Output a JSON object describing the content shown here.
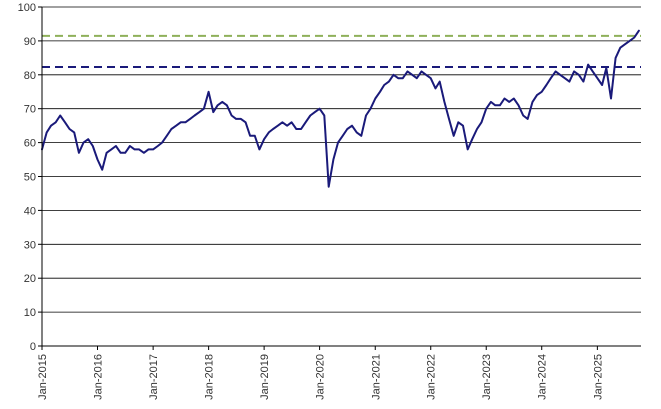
{
  "chart_data": {
    "type": "line",
    "title": "",
    "xlabel": "",
    "ylabel": "",
    "xlim": [
      "2015-01-01",
      "2025-10-15"
    ],
    "ylim": [
      0,
      100
    ],
    "y_ticks": [
      0,
      10,
      20,
      30,
      40,
      50,
      60,
      70,
      80,
      90,
      100
    ],
    "x_ticks": [
      "Jan-2015",
      "Jan-2016",
      "Jan-2017",
      "Jan-2018",
      "Jan-2019",
      "Jan-2020",
      "Jan-2021",
      "Jan-2022",
      "Jan-2023",
      "Jan-2024",
      "Jan-2025"
    ],
    "grid": "horizontal",
    "legend": "none",
    "series": [
      {
        "color": "#1a1a7a",
        "x": [
          "2015-01-01",
          "2015-02-01",
          "2015-03-01",
          "2015-04-01",
          "2015-05-01",
          "2015-06-01",
          "2015-07-01",
          "2015-08-01",
          "2015-09-01",
          "2015-10-01",
          "2015-11-01",
          "2015-12-01",
          "2016-01-01",
          "2016-02-01",
          "2016-03-01",
          "2016-04-01",
          "2016-05-01",
          "2016-06-01",
          "2016-07-01",
          "2016-08-01",
          "2016-09-01",
          "2016-10-01",
          "2016-11-01",
          "2016-12-01",
          "2017-01-01",
          "2017-02-01",
          "2017-03-01",
          "2017-04-01",
          "2017-05-01",
          "2017-06-01",
          "2017-07-01",
          "2017-08-01",
          "2017-09-01",
          "2017-10-01",
          "2017-11-01",
          "2017-12-01",
          "2018-01-01",
          "2018-02-01",
          "2018-03-01",
          "2018-04-01",
          "2018-05-01",
          "2018-06-01",
          "2018-07-01",
          "2018-08-01",
          "2018-09-01",
          "2018-10-01",
          "2018-11-01",
          "2018-12-01",
          "2019-01-01",
          "2019-02-01",
          "2019-03-01",
          "2019-04-01",
          "2019-05-01",
          "2019-06-01",
          "2019-07-01",
          "2019-08-01",
          "2019-09-01",
          "2019-10-01",
          "2019-11-01",
          "2019-12-01",
          "2020-01-01",
          "2020-02-01",
          "2020-03-01",
          "2020-04-01",
          "2020-05-01",
          "2020-06-01",
          "2020-07-01",
          "2020-08-01",
          "2020-09-01",
          "2020-10-01",
          "2020-11-01",
          "2020-12-01",
          "2021-01-01",
          "2021-02-01",
          "2021-03-01",
          "2021-04-01",
          "2021-05-01",
          "2021-06-01",
          "2021-07-01",
          "2021-08-01",
          "2021-09-01",
          "2021-10-01",
          "2021-11-01",
          "2021-12-01",
          "2022-01-01",
          "2022-02-01",
          "2022-03-01",
          "2022-04-01",
          "2022-05-01",
          "2022-06-01",
          "2022-07-01",
          "2022-08-01",
          "2022-09-01",
          "2022-10-01",
          "2022-11-01",
          "2022-12-01",
          "2023-01-01",
          "2023-02-01",
          "2023-03-01",
          "2023-04-01",
          "2023-05-01",
          "2023-06-01",
          "2023-07-01",
          "2023-08-01",
          "2023-09-01",
          "2023-10-01",
          "2023-11-01",
          "2023-12-01",
          "2024-01-01",
          "2024-02-01",
          "2024-03-01",
          "2024-04-01",
          "2024-05-01",
          "2024-06-01",
          "2024-07-01",
          "2024-08-01",
          "2024-09-01",
          "2024-10-01",
          "2024-11-01",
          "2024-12-01",
          "2025-01-01",
          "2025-02-01",
          "2025-03-01",
          "2025-04-01",
          "2025-05-01",
          "2025-06-01",
          "2025-07-01",
          "2025-08-01",
          "2025-09-01",
          "2025-10-01"
        ],
        "values": [
          58,
          63,
          65,
          66,
          68,
          66,
          64,
          63,
          57,
          60,
          61,
          59,
          55,
          52,
          57,
          58,
          59,
          57,
          57,
          59,
          58,
          58,
          57,
          58,
          58,
          59,
          60,
          62,
          64,
          65,
          66,
          66,
          67,
          68,
          69,
          70,
          75,
          69,
          71,
          72,
          71,
          68,
          67,
          67,
          66,
          62,
          62,
          58,
          61,
          63,
          64,
          65,
          66,
          65,
          66,
          64,
          64,
          66,
          68,
          69,
          70,
          68,
          47,
          55,
          60,
          62,
          64,
          65,
          63,
          62,
          68,
          70,
          73,
          75,
          77,
          78,
          80,
          79,
          79,
          81,
          80,
          79,
          81,
          80,
          79,
          76,
          78,
          72,
          67,
          62,
          66,
          65,
          58,
          61,
          64,
          66,
          70,
          72,
          71,
          71,
          73,
          72,
          73,
          71,
          68,
          67,
          72,
          74,
          75,
          77,
          79,
          81,
          80,
          79,
          78,
          81,
          80,
          78,
          83,
          81,
          79,
          77,
          82,
          73,
          85,
          88,
          89,
          90,
          91,
          93
        ]
      }
    ],
    "reference_lines": [
      {
        "y": 91.5,
        "color": "#8fb05a",
        "style": "dashed"
      },
      {
        "y": 82.3,
        "color": "#1a1a7a",
        "style": "dashed"
      }
    ]
  }
}
